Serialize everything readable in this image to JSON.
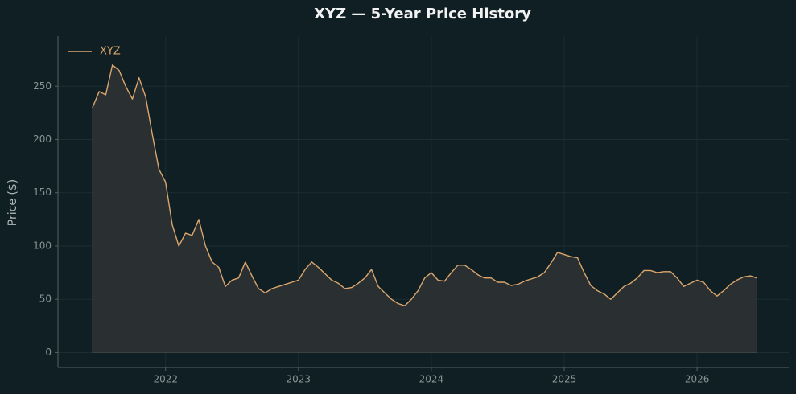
{
  "chart_data": {
    "type": "area",
    "title": "XYZ — 5-Year Price History",
    "ylabel": "Price ($)",
    "x": [
      2021.45,
      2021.5,
      2021.55,
      2021.6,
      2021.65,
      2021.7,
      2021.75,
      2021.8,
      2021.85,
      2021.9,
      2021.95,
      2022.0,
      2022.05,
      2022.1,
      2022.15,
      2022.2,
      2022.25,
      2022.3,
      2022.35,
      2022.4,
      2022.45,
      2022.5,
      2022.55,
      2022.6,
      2022.65,
      2022.7,
      2022.75,
      2022.8,
      2022.85,
      2022.9,
      2022.95,
      2023.0,
      2023.05,
      2023.1,
      2023.15,
      2023.2,
      2023.25,
      2023.3,
      2023.35,
      2023.4,
      2023.45,
      2023.5,
      2023.55,
      2023.6,
      2023.65,
      2023.7,
      2023.75,
      2023.8,
      2023.85,
      2023.9,
      2023.95,
      2024.0,
      2024.05,
      2024.1,
      2024.15,
      2024.2,
      2024.25,
      2024.3,
      2024.35,
      2024.4,
      2024.45,
      2024.5,
      2024.55,
      2024.6,
      2024.65,
      2024.7,
      2024.75,
      2024.8,
      2024.85,
      2024.9,
      2024.95,
      2025.0,
      2025.05,
      2025.1,
      2025.15,
      2025.2,
      2025.25,
      2025.3,
      2025.35,
      2025.4,
      2025.45,
      2025.5,
      2025.55,
      2025.6,
      2025.65,
      2025.7,
      2025.75,
      2025.8,
      2025.85,
      2025.9,
      2025.95,
      2026.0,
      2026.05,
      2026.1,
      2026.15,
      2026.2,
      2026.25,
      2026.3,
      2026.35,
      2026.4,
      2026.45
    ],
    "series": [
      {
        "name": "XYZ",
        "color": "#dba56c",
        "fill": "#2e3233",
        "values": [
          230,
          245,
          242,
          270,
          265,
          250,
          238,
          258,
          240,
          205,
          172,
          160,
          120,
          100,
          112,
          110,
          125,
          100,
          85,
          80,
          62,
          68,
          70,
          85,
          72,
          60,
          56,
          60,
          62,
          64,
          66,
          68,
          78,
          85,
          80,
          74,
          68,
          65,
          60,
          61,
          65,
          70,
          78,
          62,
          56,
          50,
          46,
          44,
          50,
          58,
          70,
          75,
          68,
          67,
          75,
          82,
          82,
          78,
          73,
          70,
          70,
          66,
          66,
          63,
          64,
          67,
          69,
          71,
          75,
          84,
          94,
          92,
          90,
          89,
          75,
          63,
          58,
          55,
          50,
          56,
          62,
          65,
          70,
          77,
          77,
          75,
          76,
          76,
          70,
          62,
          65,
          68,
          66,
          58,
          53,
          58,
          64,
          68,
          71,
          72,
          70
        ]
      }
    ],
    "xlim": [
      2021.19,
      2026.69
    ],
    "xticks": [
      2022,
      2023,
      2024,
      2025,
      2026
    ],
    "ylim": [
      -14,
      297
    ],
    "yticks": [
      0,
      50,
      100,
      150,
      200,
      250
    ],
    "grid": true,
    "legend": "upper left"
  }
}
